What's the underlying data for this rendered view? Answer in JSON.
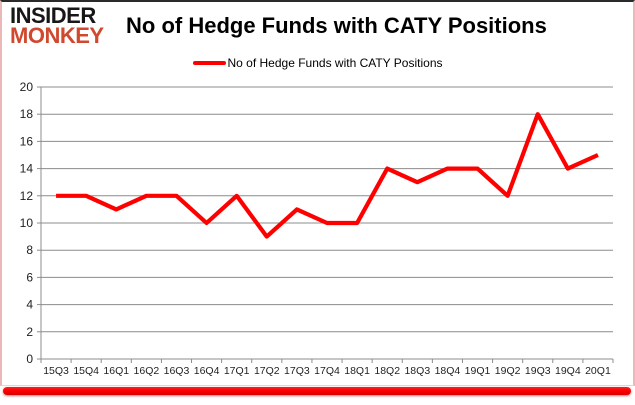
{
  "logo": {
    "line1": "INSIDER",
    "line2": "MONKEY"
  },
  "header": {
    "title": "No of Hedge Funds with CATY Positions"
  },
  "legend": {
    "label": "No of Hedge Funds with CATY Positions"
  },
  "colors": {
    "line": "#ff0000",
    "grid": "#8c8c8c",
    "axis_text": "#1f1f1f",
    "logo_black": "#171717",
    "logo_red": "#d0482e",
    "border_pink": "#eab9b7",
    "border_red": "#fb0000"
  },
  "chart_data": {
    "type": "line",
    "title": "No of Hedge Funds with CATY Positions",
    "categories": [
      "15Q3",
      "15Q4",
      "16Q1",
      "16Q2",
      "16Q3",
      "16Q4",
      "17Q1",
      "17Q2",
      "17Q3",
      "17Q4",
      "18Q1",
      "18Q2",
      "18Q3",
      "18Q4",
      "19Q1",
      "19Q2",
      "19Q3",
      "19Q4",
      "20Q1"
    ],
    "series": [
      {
        "name": "No of Hedge Funds with CATY Positions",
        "values": [
          12,
          12,
          11,
          12,
          12,
          10,
          12,
          9,
          11,
          10,
          10,
          14,
          13,
          14,
          14,
          12,
          18,
          14,
          15
        ]
      }
    ],
    "xlabel": "",
    "ylabel": "",
    "ylim": [
      0,
      20
    ],
    "ytick_step": 2,
    "grid": true,
    "legend_position": "top-center"
  }
}
